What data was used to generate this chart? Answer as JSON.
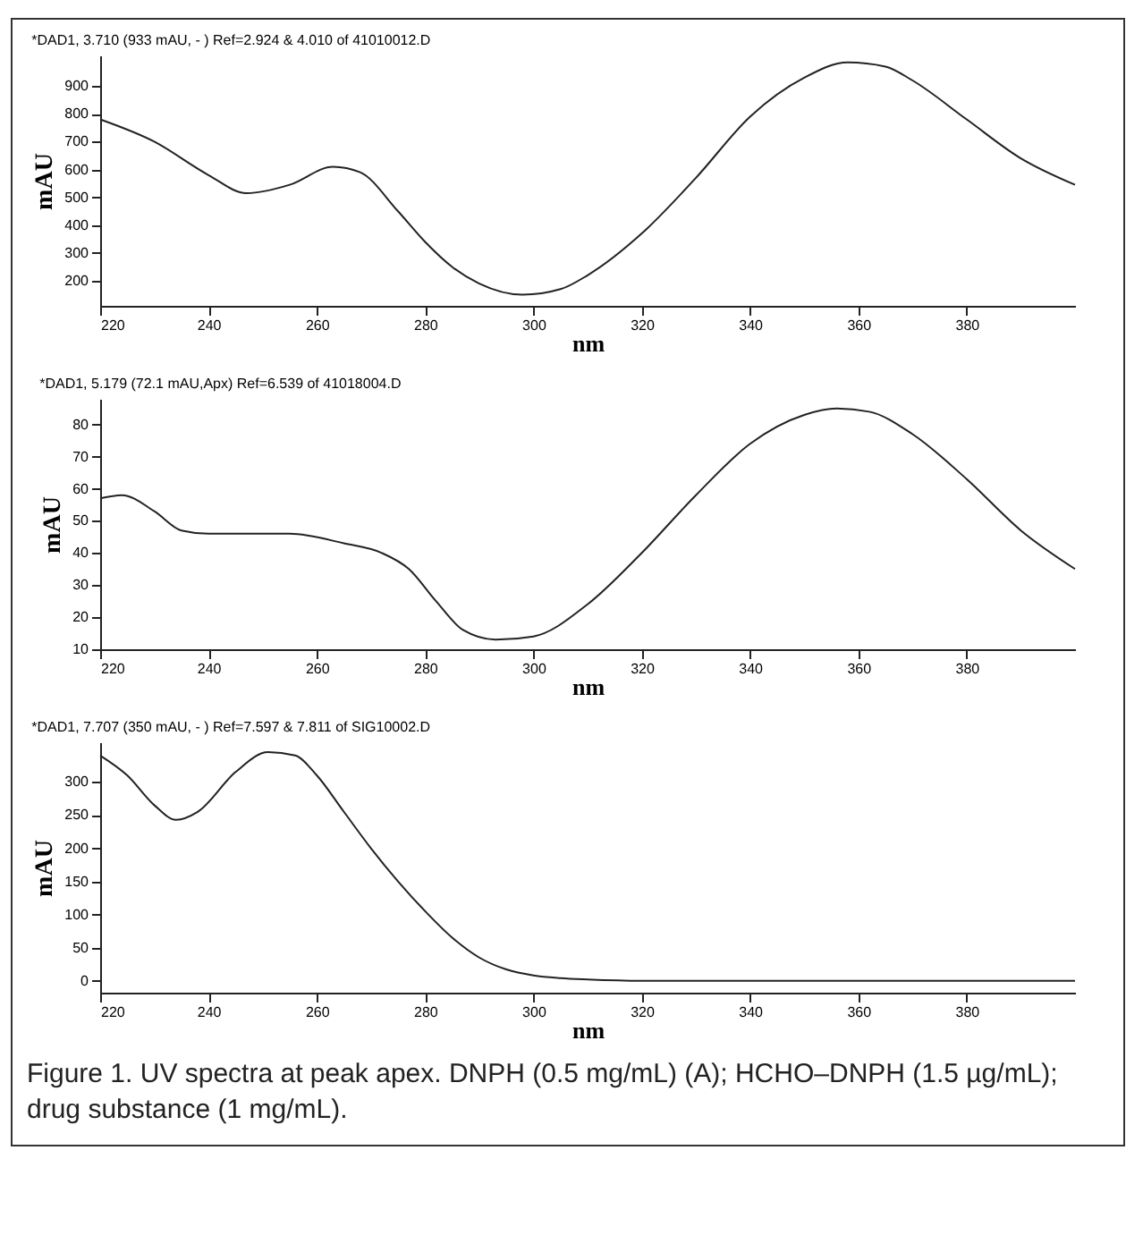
{
  "chart_data": [
    {
      "type": "line",
      "title": "*DAD1, 3.710 (933 mAU, - ) Ref=2.924 & 4.010 of 41010012.D",
      "xlabel": "nm",
      "ylabel": "mAU",
      "xlim": [
        220,
        400
      ],
      "xticks": [
        220,
        240,
        260,
        280,
        300,
        320,
        340,
        360,
        380
      ],
      "ylim": [
        110,
        1010
      ],
      "yticks": [
        200,
        300,
        400,
        500,
        600,
        700,
        800,
        900
      ],
      "grid": false,
      "x": [
        220,
        230,
        240,
        247,
        255,
        263,
        268,
        275,
        280,
        285,
        290,
        298,
        305,
        310,
        320,
        330,
        340,
        350,
        358,
        365,
        370,
        380,
        390,
        400
      ],
      "series": [
        {
          "color": "#222222",
          "values": [
            780,
            700,
            580,
            515,
            545,
            610,
            590,
            450,
            340,
            250,
            190,
            150,
            170,
            220,
            370,
            570,
            790,
            930,
            985,
            970,
            920,
            780,
            640,
            545
          ]
        }
      ]
    },
    {
      "type": "line",
      "title": "*DAD1, 5.179 (72.1 mAU,Apx) Ref=6.539 of 41018004.D",
      "xlabel": "nm",
      "ylabel": "mAU",
      "xlim": [
        220,
        400
      ],
      "xticks": [
        220,
        240,
        260,
        280,
        300,
        320,
        340,
        360,
        380
      ],
      "ylim": [
        10,
        88
      ],
      "yticks": [
        10,
        20,
        30,
        40,
        50,
        60,
        70,
        80
      ],
      "grid": false,
      "x": [
        220,
        224,
        230,
        235,
        240,
        255,
        265,
        272,
        277,
        282,
        287,
        293,
        300,
        310,
        320,
        330,
        340,
        350,
        356,
        362,
        370,
        380,
        390,
        400
      ],
      "series": [
        {
          "color": "#222222",
          "values": [
            57,
            58,
            53,
            47,
            46,
            46,
            43,
            40,
            35,
            25,
            16,
            13,
            14,
            24,
            40,
            58,
            74,
            83,
            85,
            84,
            77,
            63,
            47,
            35
          ]
        }
      ]
    },
    {
      "type": "line",
      "title": "*DAD1, 7.707 (350 mAU, - ) Ref=7.597 & 7.811 of SIG10002.D",
      "xlabel": "nm",
      "ylabel": "mAU",
      "xlim": [
        220,
        400
      ],
      "xticks": [
        220,
        240,
        260,
        280,
        300,
        320,
        340,
        360,
        380
      ],
      "ylim": [
        -18,
        360
      ],
      "yticks": [
        0,
        50,
        100,
        150,
        200,
        250,
        300
      ],
      "grid": false,
      "annotations": [
        "Figure 1. UV spectra at peak apex. DNPH (0.5 mg/mL) (A); HCHO–DNPH (1.5 µg/mL); drug substance (1 mg/mL)."
      ],
      "x": [
        220,
        225,
        230,
        234,
        238,
        245,
        251,
        256,
        260,
        265,
        270,
        275,
        280,
        285,
        290,
        295,
        300,
        305,
        310,
        320,
        340,
        400
      ],
      "series": [
        {
          "color": "#222222",
          "values": [
            340,
            310,
            265,
            243,
            255,
            315,
            345,
            340,
            310,
            255,
            200,
            150,
            105,
            65,
            35,
            17,
            8,
            4,
            2,
            0,
            0,
            0
          ]
        }
      ]
    }
  ]
}
